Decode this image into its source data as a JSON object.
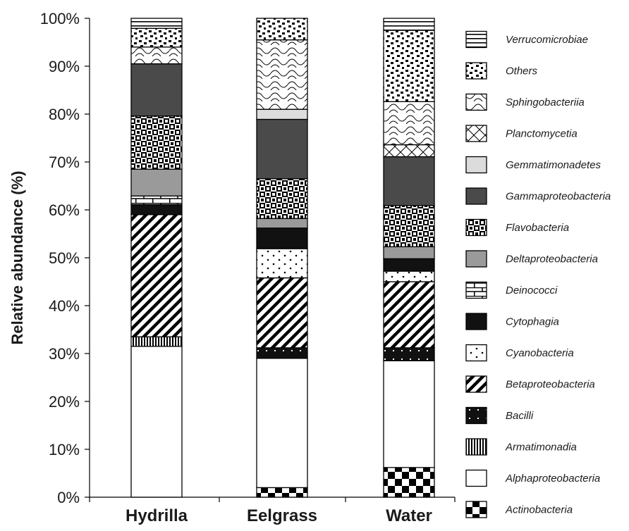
{
  "chart_data": {
    "type": "bar",
    "stacked": true,
    "percent": true,
    "ylabel": "Relative abundance (%)",
    "xlabel": "",
    "ylim": [
      0,
      100
    ],
    "yticks": [
      "0%",
      "10%",
      "20%",
      "30%",
      "40%",
      "50%",
      "60%",
      "70%",
      "80%",
      "90%",
      "100%"
    ],
    "categories": [
      "Hydrilla",
      "Eelgrass",
      "Water"
    ],
    "legend_position": "right",
    "series": [
      {
        "name": "Actinobacteria",
        "pattern": "checker-large",
        "values": [
          0.0,
          2.0,
          6.2
        ]
      },
      {
        "name": "Alphaproteobacteria",
        "pattern": "white",
        "values": [
          31.5,
          27.0,
          22.3
        ]
      },
      {
        "name": "Armatimonadia",
        "pattern": "vertical-lines",
        "values": [
          2.0,
          0.0,
          0.0
        ]
      },
      {
        "name": "Bacilli",
        "pattern": "black-dots",
        "values": [
          0.0,
          2.2,
          2.7
        ]
      },
      {
        "name": "Betaproteobacteria",
        "pattern": "diagonal",
        "values": [
          25.5,
          14.6,
          13.8
        ]
      },
      {
        "name": "Cyanobacteria",
        "pattern": "dots",
        "values": [
          0.0,
          6.1,
          2.2
        ]
      },
      {
        "name": "Cytophagia",
        "pattern": "black",
        "values": [
          2.1,
          4.3,
          2.6
        ]
      },
      {
        "name": "Deinococci",
        "pattern": "brick",
        "values": [
          1.8,
          0.0,
          0.0
        ]
      },
      {
        "name": "Deltaproteobacteria",
        "pattern": "gray",
        "values": [
          5.6,
          2.0,
          2.5
        ]
      },
      {
        "name": "Flavobacteria",
        "pattern": "checker-weave",
        "values": [
          11.1,
          8.3,
          8.6
        ]
      },
      {
        "name": "Gammaproteobacteria",
        "pattern": "dark-gray",
        "values": [
          10.9,
          12.4,
          10.2
        ]
      },
      {
        "name": "Gemmatimonadetes",
        "pattern": "light-gray",
        "values": [
          0.0,
          2.1,
          0.0
        ]
      },
      {
        "name": "Planctomycetia",
        "pattern": "cross",
        "values": [
          0.0,
          0.0,
          2.5
        ]
      },
      {
        "name": "Sphingobacteriia",
        "pattern": "wave",
        "values": [
          3.5,
          14.5,
          9.0
        ]
      },
      {
        "name": "Others",
        "pattern": "confetti",
        "values": [
          3.9,
          4.5,
          14.9
        ]
      },
      {
        "name": "Verrucomicrobiae",
        "pattern": "horizontal-lines",
        "values": [
          2.1,
          0.0,
          2.5
        ]
      }
    ]
  }
}
